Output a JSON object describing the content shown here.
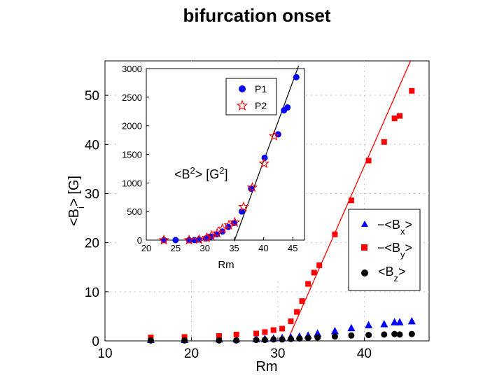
{
  "title": "bifurcation onset",
  "colors": {
    "bx": "#0000ff",
    "by": "#ff0000",
    "bz": "#000000",
    "fit_main": "#ff0000",
    "fit_inset": "#000000",
    "grid": "#c8c8c8"
  },
  "chart_data": [
    {
      "id": "main",
      "type": "scatter",
      "title": "bifurcation onset",
      "xlabel": "Rm",
      "ylabel": "<B_i> [G]",
      "ylabel_parts": {
        "main": "<B",
        "sub": "i",
        "end": "> [G]"
      },
      "xlim": [
        10,
        47.5
      ],
      "ylim": [
        0,
        57
      ],
      "xticks": [
        10,
        20,
        30,
        40
      ],
      "yticks": [
        0,
        10,
        20,
        30,
        40,
        50
      ],
      "grid": "dotted",
      "legend_position": "bottom-right",
      "legend_parts": [
        {
          "pre": "−<B",
          "sub": "x",
          "post": ">"
        },
        {
          "pre": "−<B",
          "sub": "y",
          "post": ">"
        },
        {
          "pre": "<B",
          "sub": "z",
          "post": ">"
        }
      ],
      "series": [
        {
          "name": "-<Bx>",
          "marker": "triangle",
          "color": "#0000ff",
          "x": [
            15.3,
            19.2,
            23.2,
            25.2,
            27.5,
            28.5,
            29.5,
            30.5,
            31.5,
            32.5,
            33.5,
            34.6,
            36.6,
            38.5,
            40.5,
            42.3,
            43.5,
            44.1,
            45.5
          ],
          "y": [
            0.2,
            0.2,
            0.3,
            0.3,
            0.4,
            0.4,
            0.5,
            0.6,
            0.7,
            0.9,
            1.1,
            1.5,
            2.0,
            2.6,
            3.2,
            3.4,
            3.8,
            3.8,
            4.0
          ]
        },
        {
          "name": "-<By>",
          "marker": "square",
          "color": "#ff0000",
          "x": [
            15.3,
            19.2,
            23.2,
            25.2,
            27.5,
            28.5,
            29.5,
            30.5,
            31.5,
            32.2,
            32.8,
            33.5,
            34.2,
            34.8,
            36.6,
            38.5,
            40.5,
            42.3,
            43.5,
            44.1,
            45.5
          ],
          "y": [
            0.7,
            0.8,
            1.0,
            1.3,
            1.5,
            1.8,
            2.2,
            2.5,
            4.0,
            5.9,
            8.1,
            11.6,
            13.9,
            15.4,
            21.7,
            28.6,
            36.7,
            40.5,
            45.3,
            45.8,
            50.9
          ]
        },
        {
          "name": "<Bz>",
          "marker": "circle",
          "color": "#000000",
          "x": [
            15.3,
            19.2,
            23.2,
            25.2,
            27.5,
            28.5,
            29.5,
            30.5,
            31.5,
            32.5,
            33.5,
            34.6,
            36.6,
            38.5,
            40.5,
            42.3,
            43.5,
            44.1,
            45.5
          ],
          "y": [
            0.1,
            0.1,
            0.1,
            0.1,
            0.2,
            0.2,
            0.3,
            0.3,
            0.4,
            0.5,
            0.6,
            0.7,
            0.9,
            1.1,
            1.2,
            1.3,
            1.4,
            1.3,
            1.4
          ]
        }
      ],
      "fit_line": {
        "x": [
          31.1,
          45.35
        ],
        "y": [
          0,
          57
        ],
        "color": "#ff0000"
      }
    },
    {
      "id": "inset",
      "type": "scatter",
      "xlabel": "Rm",
      "annotation_parts": {
        "a": "<B",
        "sup1": "2",
        "b": "> [G",
        "sup2": "2",
        "c": "]"
      },
      "xlim": [
        20,
        47
      ],
      "ylim": [
        0,
        3000
      ],
      "xticks": [
        20,
        25,
        30,
        35,
        40,
        45
      ],
      "yticks": [
        0,
        500,
        1000,
        1500,
        2000,
        2500,
        3000
      ],
      "legend_position": "top-right",
      "series": [
        {
          "name": "P1",
          "marker": "circle",
          "color": "#0000ff",
          "x": [
            23.0,
            25.0,
            27.3,
            28.2,
            29.0,
            30.2,
            31.0,
            32.0,
            33.0,
            34.0,
            35.0,
            36.3,
            37.9,
            40.2,
            42.5,
            43.5,
            44.1,
            45.6
          ],
          "y": [
            0,
            0,
            0,
            0,
            10,
            30,
            60,
            100,
            150,
            230,
            300,
            500,
            900,
            1440,
            1850,
            2270,
            2320,
            2850
          ]
        },
        {
          "name": "P2",
          "marker": "star",
          "color": "#ff0000",
          "x": [
            23.0,
            27.3,
            29.0,
            30.3,
            31.1,
            32.1,
            33.0,
            34.1,
            35.1,
            36.6,
            38.1,
            40.1,
            41.8
          ],
          "y": [
            0,
            0,
            10,
            40,
            80,
            120,
            200,
            260,
            310,
            580,
            920,
            1340,
            1820
          ]
        }
      ],
      "fit_line": {
        "x": [
          35.0,
          46.0
        ],
        "y": [
          -20,
          3050
        ],
        "color": "#000000"
      }
    }
  ]
}
